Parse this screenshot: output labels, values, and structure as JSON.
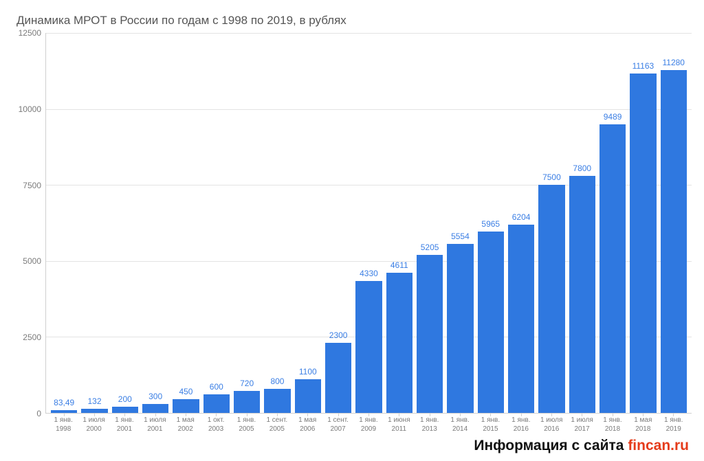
{
  "chart": {
    "type": "bar",
    "title": "Динамика МРОТ в России по годам с 1998 по 2019, в рублях",
    "title_color": "#555555",
    "title_fontsize": 17,
    "background_color": "#ffffff",
    "bar_color": "#2f78e0",
    "value_label_color": "#3a7ee4",
    "grid_color": "#e3e3e3",
    "axis_color": "#cfcfcf",
    "tick_label_color": "#7a7a7a",
    "ylim": [
      0,
      12500
    ],
    "yticks": [
      0,
      2500,
      5000,
      7500,
      10000,
      12500
    ],
    "bar_width_ratio": 0.78,
    "value_fontsize": 12,
    "tick_fontsize": 12,
    "xlabel_fontsize": 10,
    "categories": [
      {
        "line1": "1 янв.",
        "line2": "1998"
      },
      {
        "line1": "1 июля",
        "line2": "2000"
      },
      {
        "line1": "1 янв.",
        "line2": "2001"
      },
      {
        "line1": "1 июля",
        "line2": "2001"
      },
      {
        "line1": "1 мая",
        "line2": "2002"
      },
      {
        "line1": "1 окт.",
        "line2": "2003"
      },
      {
        "line1": "1 янв.",
        "line2": "2005"
      },
      {
        "line1": "1 сент.",
        "line2": "2005"
      },
      {
        "line1": "1 мая",
        "line2": "2006"
      },
      {
        "line1": "1 сент.",
        "line2": "2007"
      },
      {
        "line1": "1 янв.",
        "line2": "2009"
      },
      {
        "line1": "1 июня",
        "line2": "2011"
      },
      {
        "line1": "1 янв.",
        "line2": "2013"
      },
      {
        "line1": "1 янв.",
        "line2": "2014"
      },
      {
        "line1": "1 янв.",
        "line2": "2015"
      },
      {
        "line1": "1 янв.",
        "line2": "2016"
      },
      {
        "line1": "1 июля",
        "line2": "2016"
      },
      {
        "line1": "1 июля",
        "line2": "2017"
      },
      {
        "line1": "1 янв.",
        "line2": "2018"
      },
      {
        "line1": "1 мая",
        "line2": "2018"
      },
      {
        "line1": "1 янв.",
        "line2": "2019"
      }
    ],
    "values": [
      83.49,
      132,
      200,
      300,
      450,
      600,
      720,
      800,
      1100,
      2300,
      4330,
      4611,
      5205,
      5554,
      5965,
      6204,
      7500,
      7800,
      9489,
      11163,
      11280
    ],
    "value_labels": [
      "83,49",
      "132",
      "200",
      "300",
      "450",
      "600",
      "720",
      "800",
      "1100",
      "2300",
      "4330",
      "4611",
      "5205",
      "5554",
      "5965",
      "6204",
      "7500",
      "7800",
      "9489",
      "11163",
      "11280"
    ]
  },
  "footer": {
    "prefix": "Информация с сайта ",
    "link_text": "fincan.ru",
    "text_color": "#111111",
    "link_color": "#e53b1a",
    "fontsize": 21
  }
}
